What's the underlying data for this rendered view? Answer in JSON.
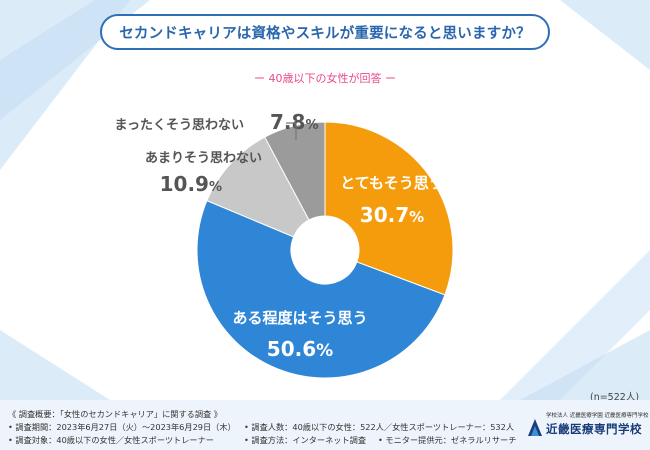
{
  "title": "セカンドキャリアは資格やスキルが重要になると思いますか？",
  "subtitle": "ー 40歳以下の女性が回答 ー",
  "sample_size": "(n=522人)",
  "colors": {
    "title_border": "#2f6fb8",
    "subtitle": "#e84b8a",
    "very": "#f59c0c",
    "somewhat": "#2f86d6",
    "not_really": "#c8c8c8",
    "not_at_all": "#9b9b9b",
    "footer_bg": "#eef4fb"
  },
  "chart_data": {
    "type": "pie",
    "style": "donut",
    "title": "セカンドキャリアは資格やスキルが重要になると思いますか？",
    "slices": [
      {
        "label": "とてもそう思う",
        "value": 30.7,
        "display": "30.7%",
        "color": "#f59c0c"
      },
      {
        "label": "ある程度はそう思う",
        "value": 50.6,
        "display": "50.6%",
        "color": "#2f86d6"
      },
      {
        "label": "あまりそう思わない",
        "value": 10.9,
        "display": "10.9%",
        "color": "#c8c8c8"
      },
      {
        "label": "まったくそう思わない",
        "value": 7.8,
        "display": "7.8%",
        "color": "#9b9b9b"
      }
    ]
  },
  "footer": {
    "heading": "《 調査概要：「女性のセカンドキャリア」に関する調査 》",
    "period": "• 調査期間：2023年6月27日（火）～2023年6月29日（木）",
    "target": "• 調査対象：40歳以下の女性／女性スポーツトレーナー",
    "count": "• 調査人数：40歳以下の女性：522人／女性スポーツトレーナー：532人",
    "method": "• 調査方法：インターネット調査",
    "provider": "• モニター提供元：ゼネラルリサーチ"
  },
  "logo": {
    "sub": "学校法人 近畿医療学園 近畿医療専門学校",
    "name": "近畿医療専門学校"
  }
}
